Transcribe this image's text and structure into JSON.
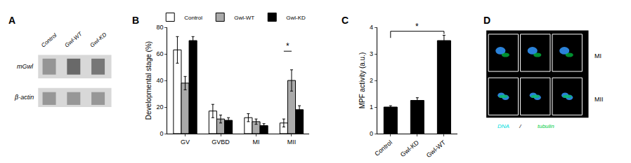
{
  "chart_data": [
    {
      "type": "blot",
      "title": "A",
      "categories": [
        "Control",
        "Gwl-WT",
        "Gwl-KD"
      ],
      "annotations": [
        {
          "text": "mGwl"
        },
        {
          "text": "β-actin"
        }
      ]
    },
    {
      "type": "bar",
      "title": "B",
      "categories": [
        "GV",
        "GVBD",
        "MI",
        "MII"
      ],
      "series": [
        {
          "name": "Control",
          "color": "white",
          "values": [
            63,
            17,
            12,
            8
          ],
          "errors": [
            10,
            5,
            3,
            3
          ]
        },
        {
          "name": "Gwl-WT",
          "color": "#aaaaaa",
          "values": [
            38,
            11,
            9,
            40
          ],
          "errors": [
            5,
            3,
            2,
            8
          ]
        },
        {
          "name": "Gwl-KD",
          "color": "black",
          "values": [
            70,
            10,
            6,
            18
          ],
          "errors": [
            3,
            2,
            1.5,
            3
          ]
        }
      ],
      "ylabel": "Developmental stage (%)",
      "ylim": [
        0,
        80
      ],
      "yticks": [
        0,
        20,
        40,
        60,
        80
      ],
      "grid": false,
      "legend": "upper right",
      "annotations": [
        {
          "text": "*",
          "category": 3,
          "between": [
            "Control",
            "Gwl-WT"
          ],
          "y": 62
        }
      ]
    },
    {
      "type": "bar",
      "title": "C",
      "categories": [
        "Control",
        "Gwl-KD",
        "Gwl-WT"
      ],
      "values": [
        1.0,
        1.25,
        3.5
      ],
      "errors": [
        0.05,
        0.1,
        0.2
      ],
      "color": "black",
      "ylabel": "MPF activity (a.u.)",
      "ylim": [
        0,
        4
      ],
      "yticks": [
        0,
        1,
        2,
        3,
        4
      ],
      "grid": false,
      "annotations": [
        {
          "text": "*",
          "x": [
            0,
            2
          ],
          "y": 3.85,
          "legs": [
            3.6,
            3.75
          ]
        }
      ]
    },
    {
      "type": "image",
      "title": "D",
      "categories": [
        "MI",
        "MII"
      ],
      "annotations": [
        {
          "text": "DNA",
          "color": "#00dddd"
        },
        {
          "text": " / "
        },
        {
          "text": "tubulin",
          "color": "#00cc44"
        }
      ]
    }
  ]
}
